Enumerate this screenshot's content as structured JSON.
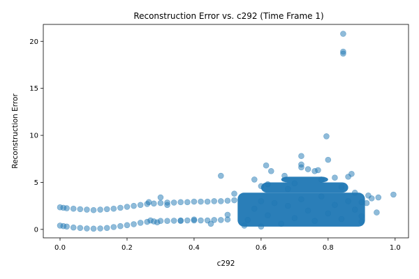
{
  "chart_data": {
    "type": "scatter",
    "title": "Reconstruction Error vs. c292 (Time Frame 1)",
    "xlabel": "c292",
    "ylabel": "Reconstruction Error",
    "xlim": [
      -0.05,
      1.04
    ],
    "ylim": [
      -0.9,
      21.8
    ],
    "xticks": [
      0.0,
      0.2,
      0.4,
      0.6,
      0.8,
      1.0
    ],
    "xtick_labels": [
      "0.0",
      "0.2",
      "0.4",
      "0.6",
      "0.8",
      "1.0"
    ],
    "yticks": [
      0,
      5,
      10,
      15,
      20
    ],
    "ytick_labels": [
      "0",
      "5",
      "10",
      "15",
      "20"
    ],
    "grid": false,
    "marker_color": "#1f77b4",
    "marker_alpha": 0.5,
    "series": [
      {
        "points": [
          [
            0.0,
            2.35
          ],
          [
            0.01,
            2.3
          ],
          [
            0.02,
            2.25
          ],
          [
            0.04,
            2.2
          ],
          [
            0.06,
            2.15
          ],
          [
            0.08,
            2.1
          ],
          [
            0.1,
            2.05
          ],
          [
            0.12,
            2.1
          ],
          [
            0.14,
            2.15
          ],
          [
            0.16,
            2.2
          ],
          [
            0.18,
            2.3
          ],
          [
            0.2,
            2.4
          ],
          [
            0.22,
            2.5
          ],
          [
            0.24,
            2.6
          ],
          [
            0.26,
            2.7
          ],
          [
            0.28,
            2.75
          ],
          [
            0.3,
            2.8
          ],
          [
            0.32,
            2.85
          ],
          [
            0.34,
            2.85
          ],
          [
            0.36,
            2.9
          ],
          [
            0.38,
            2.9
          ],
          [
            0.4,
            2.95
          ],
          [
            0.42,
            2.95
          ],
          [
            0.44,
            2.95
          ],
          [
            0.46,
            3.0
          ],
          [
            0.48,
            3.0
          ],
          [
            0.5,
            3.05
          ],
          [
            0.52,
            3.1
          ],
          [
            0.0,
            0.4
          ],
          [
            0.01,
            0.35
          ],
          [
            0.02,
            0.3
          ],
          [
            0.04,
            0.2
          ],
          [
            0.06,
            0.15
          ],
          [
            0.08,
            0.1
          ],
          [
            0.1,
            0.08
          ],
          [
            0.12,
            0.1
          ],
          [
            0.14,
            0.15
          ],
          [
            0.16,
            0.25
          ],
          [
            0.18,
            0.35
          ],
          [
            0.2,
            0.45
          ],
          [
            0.22,
            0.55
          ],
          [
            0.24,
            0.7
          ],
          [
            0.26,
            0.8
          ],
          [
            0.28,
            0.85
          ],
          [
            0.3,
            0.9
          ],
          [
            0.32,
            0.9
          ],
          [
            0.34,
            0.92
          ],
          [
            0.36,
            0.95
          ],
          [
            0.38,
            0.95
          ],
          [
            0.4,
            0.95
          ],
          [
            0.42,
            0.95
          ],
          [
            0.44,
            0.95
          ],
          [
            0.46,
            1.0
          ],
          [
            0.48,
            1.0
          ],
          [
            0.5,
            1.05
          ],
          [
            0.3,
            3.4
          ],
          [
            0.32,
            2.6
          ],
          [
            0.265,
            2.9
          ],
          [
            0.29,
            0.75
          ],
          [
            0.36,
            0.9
          ],
          [
            0.4,
            1.05
          ],
          [
            0.27,
            0.95
          ],
          [
            0.45,
            0.6
          ],
          [
            0.48,
            5.7
          ],
          [
            0.5,
            1.55
          ],
          [
            0.52,
            3.8
          ],
          [
            0.56,
            1.0
          ],
          [
            0.58,
            2.2
          ],
          [
            0.6,
            3.0
          ],
          [
            0.62,
            1.5
          ],
          [
            0.64,
            2.8
          ],
          [
            0.66,
            0.6
          ],
          [
            0.68,
            2.5
          ],
          [
            0.7,
            1.2
          ],
          [
            0.72,
            3.2
          ],
          [
            0.74,
            2.0
          ],
          [
            0.76,
            0.9
          ],
          [
            0.78,
            3.5
          ],
          [
            0.8,
            1.7
          ],
          [
            0.82,
            2.6
          ],
          [
            0.84,
            1.1
          ],
          [
            0.86,
            3.0
          ],
          [
            0.88,
            2.1
          ],
          [
            0.9,
            1.4
          ],
          [
            0.58,
            5.3
          ],
          [
            0.6,
            4.6
          ],
          [
            0.62,
            4.8
          ],
          [
            0.63,
            6.2
          ],
          [
            0.615,
            6.8
          ],
          [
            0.67,
            5.7
          ],
          [
            0.68,
            4.3
          ],
          [
            0.7,
            4.9
          ],
          [
            0.72,
            7.8
          ],
          [
            0.72,
            6.9
          ],
          [
            0.72,
            6.6
          ],
          [
            0.74,
            6.4
          ],
          [
            0.76,
            6.2
          ],
          [
            0.77,
            6.3
          ],
          [
            0.78,
            5.3
          ],
          [
            0.8,
            7.4
          ],
          [
            0.82,
            5.5
          ],
          [
            0.84,
            4.5
          ],
          [
            0.86,
            5.6
          ],
          [
            0.87,
            5.9
          ],
          [
            0.88,
            3.9
          ],
          [
            0.9,
            2.9
          ],
          [
            0.92,
            3.6
          ],
          [
            0.93,
            3.3
          ],
          [
            0.945,
            1.8
          ],
          [
            0.9,
            0.8
          ],
          [
            0.915,
            2.8
          ],
          [
            0.6,
            0.3
          ],
          [
            0.55,
            0.4
          ],
          [
            0.795,
            9.9
          ],
          [
            0.845,
            20.8
          ],
          [
            0.845,
            18.9
          ],
          [
            0.845,
            18.7
          ],
          [
            0.995,
            3.7
          ],
          [
            0.95,
            3.4
          ]
        ],
        "dense_regions": [
          {
            "x": [
              0.53,
              0.91
            ],
            "y": [
              0.3,
              3.9
            ]
          },
          {
            "x": [
              0.6,
              0.86
            ],
            "y": [
              3.9,
              5.0
            ]
          },
          {
            "x": [
              0.66,
              0.8
            ],
            "y": [
              5.0,
              5.6
            ]
          }
        ]
      }
    ]
  }
}
